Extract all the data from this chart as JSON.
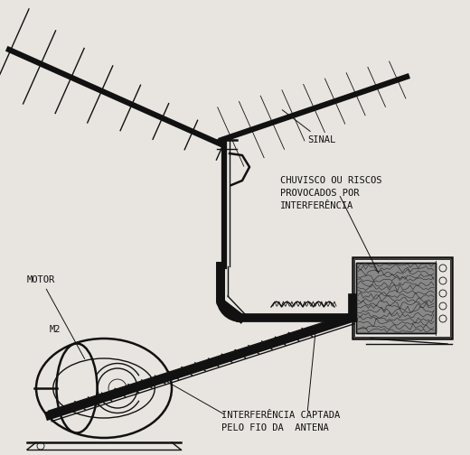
{
  "bg_color": "#e8e5e0",
  "fig_width": 5.2,
  "fig_height": 5.04,
  "dpi": 100,
  "labels": {
    "sinal": "SINAL",
    "chuvisco": "CHUVISCO OU RISCOS\nPROVOCADOS POR\nINTERFERÊNCIA",
    "motor": "MOTOR",
    "m2": "M2",
    "interferencia": "INTERFERÊNCIA CAPTADA\nPELO FIO DA  ANTENA"
  },
  "line_color": "#111111"
}
